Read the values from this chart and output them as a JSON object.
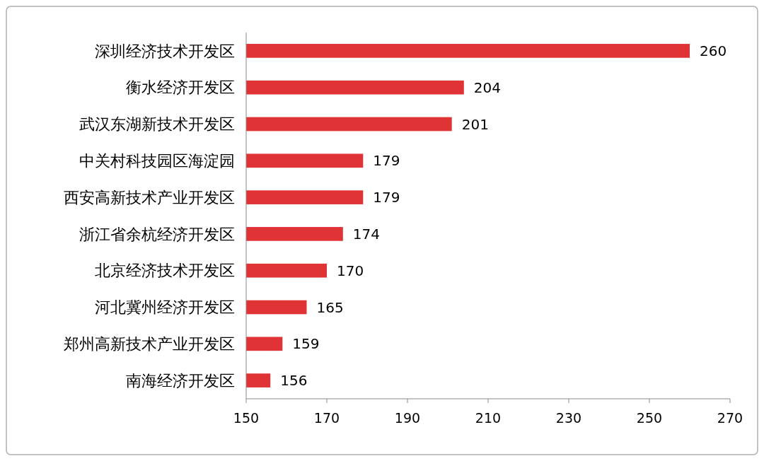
{
  "chart_data": {
    "type": "bar",
    "orientation": "horizontal",
    "categories": [
      "深圳经济技术开发区",
      "衡水经济开发区",
      "武汉东湖新技术开发区",
      "中关村科技园区海淀园",
      "西安高新技术产业开发区",
      "浙江省余杭经济开发区",
      "北京经济技术开发区",
      "河北冀州经济开发区",
      "郑州高新技术产业开发区",
      "南海经济开发区"
    ],
    "values": [
      260,
      204,
      201,
      179,
      179,
      174,
      170,
      165,
      159,
      156
    ],
    "color": "#e03336",
    "xlim": [
      150,
      270
    ],
    "xticks": [
      150,
      170,
      190,
      210,
      230,
      250,
      270
    ],
    "data_labels": true,
    "grid": false
  }
}
